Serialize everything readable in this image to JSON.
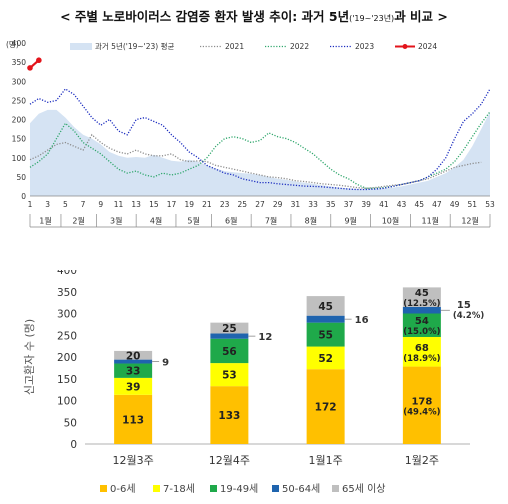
{
  "title": {
    "pre": "< 주별 노로바이러스 감염증 환자 발생 추이: 과거 5년",
    "small": "('19~'23년)",
    "post": "과 비교 >"
  },
  "chart_data": [
    {
      "type": "line",
      "yunit": "(명)",
      "ylim": [
        0,
        400
      ],
      "yticks": [
        0,
        50,
        100,
        150,
        200,
        250,
        300,
        350,
        400
      ],
      "xlim": [
        1,
        53
      ],
      "xticks": [
        1,
        3,
        5,
        7,
        9,
        11,
        13,
        15,
        17,
        19,
        21,
        23,
        25,
        27,
        29,
        31,
        33,
        35,
        37,
        39,
        41,
        43,
        45,
        47,
        49,
        51,
        53
      ],
      "months": [
        {
          "label": "1월",
          "from": 1,
          "to": 4.5
        },
        {
          "label": "2월",
          "from": 4.5,
          "to": 8.5
        },
        {
          "label": "3월",
          "from": 8.5,
          "to": 13
        },
        {
          "label": "4월",
          "from": 13,
          "to": 17.5
        },
        {
          "label": "5월",
          "from": 17.5,
          "to": 21.5
        },
        {
          "label": "6월",
          "from": 21.5,
          "to": 26
        },
        {
          "label": "7월",
          "from": 26,
          "to": 30.5
        },
        {
          "label": "8월",
          "from": 30.5,
          "to": 35
        },
        {
          "label": "9월",
          "from": 35,
          "to": 39.5
        },
        {
          "label": "10월",
          "from": 39.5,
          "to": 44
        },
        {
          "label": "11월",
          "from": 44,
          "to": 48.5
        },
        {
          "label": "12월",
          "from": 48.5,
          "to": 53
        }
      ],
      "series": [
        {
          "name": "과거 5년('19~'23) 평균",
          "style": "area",
          "color": "#d5e3f3",
          "points": [
            [
              1,
              190
            ],
            [
              2,
              215
            ],
            [
              3,
              225
            ],
            [
              4,
              225
            ],
            [
              5,
              205
            ],
            [
              6,
              180
            ],
            [
              7,
              160
            ],
            [
              8,
              150
            ],
            [
              9,
              135
            ],
            [
              10,
              115
            ],
            [
              11,
              105
            ],
            [
              12,
              100
            ],
            [
              13,
              102
            ],
            [
              14,
              100
            ],
            [
              15,
              108
            ],
            [
              16,
              100
            ],
            [
              17,
              92
            ],
            [
              18,
              90
            ],
            [
              19,
              95
            ],
            [
              20,
              90
            ],
            [
              21,
              80
            ],
            [
              22,
              72
            ],
            [
              23,
              65
            ],
            [
              24,
              62
            ],
            [
              25,
              60
            ],
            [
              26,
              58
            ],
            [
              27,
              55
            ],
            [
              28,
              50
            ],
            [
              29,
              45
            ],
            [
              30,
              42
            ],
            [
              31,
              38
            ],
            [
              32,
              35
            ],
            [
              33,
              32
            ],
            [
              34,
              28
            ],
            [
              35,
              25
            ],
            [
              36,
              22
            ],
            [
              37,
              20
            ],
            [
              38,
              18
            ],
            [
              39,
              18
            ],
            [
              40,
              18
            ],
            [
              41,
              20
            ],
            [
              42,
              22
            ],
            [
              43,
              25
            ],
            [
              44,
              30
            ],
            [
              45,
              35
            ],
            [
              46,
              40
            ],
            [
              47,
              50
            ],
            [
              48,
              60
            ],
            [
              49,
              75
            ],
            [
              50,
              95
            ],
            [
              51,
              130
            ],
            [
              52,
              175
            ],
            [
              53,
              220
            ]
          ]
        },
        {
          "name": "2021",
          "style": "dotted",
          "color": "#8c8c8c",
          "points": [
            [
              1,
              95
            ],
            [
              2,
              105
            ],
            [
              3,
              120
            ],
            [
              4,
              135
            ],
            [
              5,
              140
            ],
            [
              6,
              130
            ],
            [
              7,
              120
            ],
            [
              8,
              160
            ],
            [
              9,
              140
            ],
            [
              10,
              125
            ],
            [
              11,
              115
            ],
            [
              12,
              110
            ],
            [
              13,
              120
            ],
            [
              14,
              110
            ],
            [
              15,
              105
            ],
            [
              16,
              105
            ],
            [
              17,
              110
            ],
            [
              18,
              95
            ],
            [
              19,
              90
            ],
            [
              20,
              92
            ],
            [
              21,
              90
            ],
            [
              22,
              80
            ],
            [
              23,
              75
            ],
            [
              24,
              70
            ],
            [
              25,
              65
            ],
            [
              26,
              60
            ],
            [
              27,
              55
            ],
            [
              28,
              50
            ],
            [
              29,
              48
            ],
            [
              30,
              45
            ],
            [
              31,
              40
            ],
            [
              32,
              38
            ],
            [
              33,
              35
            ],
            [
              34,
              32
            ],
            [
              35,
              30
            ],
            [
              36,
              28
            ],
            [
              37,
              25
            ],
            [
              38,
              22
            ],
            [
              39,
              20
            ],
            [
              40,
              22
            ],
            [
              41,
              25
            ],
            [
              42,
              28
            ],
            [
              43,
              30
            ],
            [
              44,
              35
            ],
            [
              45,
              40
            ],
            [
              46,
              45
            ],
            [
              47,
              55
            ],
            [
              48,
              65
            ],
            [
              49,
              75
            ],
            [
              50,
              80
            ],
            [
              51,
              85
            ],
            [
              52,
              88
            ]
          ]
        },
        {
          "name": "2022",
          "style": "dotted",
          "color": "#2ea66b",
          "points": [
            [
              1,
              75
            ],
            [
              2,
              90
            ],
            [
              3,
              110
            ],
            [
              4,
              150
            ],
            [
              5,
              190
            ],
            [
              6,
              170
            ],
            [
              7,
              140
            ],
            [
              8,
              125
            ],
            [
              9,
              110
            ],
            [
              10,
              90
            ],
            [
              11,
              70
            ],
            [
              12,
              60
            ],
            [
              13,
              65
            ],
            [
              14,
              55
            ],
            [
              15,
              50
            ],
            [
              16,
              60
            ],
            [
              17,
              55
            ],
            [
              18,
              60
            ],
            [
              19,
              70
            ],
            [
              20,
              80
            ],
            [
              21,
              100
            ],
            [
              22,
              130
            ],
            [
              23,
              150
            ],
            [
              24,
              155
            ],
            [
              25,
              150
            ],
            [
              26,
              140
            ],
            [
              27,
              145
            ],
            [
              28,
              165
            ],
            [
              29,
              155
            ],
            [
              30,
              150
            ],
            [
              31,
              140
            ],
            [
              32,
              125
            ],
            [
              33,
              110
            ],
            [
              34,
              90
            ],
            [
              35,
              70
            ],
            [
              36,
              55
            ],
            [
              37,
              45
            ],
            [
              38,
              30
            ],
            [
              39,
              20
            ],
            [
              40,
              20
            ],
            [
              41,
              22
            ],
            [
              42,
              25
            ],
            [
              43,
              30
            ],
            [
              44,
              35
            ],
            [
              45,
              40
            ],
            [
              46,
              50
            ],
            [
              47,
              60
            ],
            [
              48,
              70
            ],
            [
              49,
              90
            ],
            [
              50,
              120
            ],
            [
              51,
              155
            ],
            [
              52,
              190
            ],
            [
              53,
              220
            ]
          ]
        },
        {
          "name": "2023",
          "style": "dotted",
          "color": "#1a2bbf",
          "points": [
            [
              1,
              240
            ],
            [
              2,
              255
            ],
            [
              3,
              245
            ],
            [
              4,
              250
            ],
            [
              5,
              280
            ],
            [
              6,
              265
            ],
            [
              7,
              235
            ],
            [
              8,
              205
            ],
            [
              9,
              185
            ],
            [
              10,
              200
            ],
            [
              11,
              170
            ],
            [
              12,
              160
            ],
            [
              13,
              200
            ],
            [
              14,
              205
            ],
            [
              15,
              195
            ],
            [
              16,
              185
            ],
            [
              17,
              160
            ],
            [
              18,
              140
            ],
            [
              19,
              115
            ],
            [
              20,
              100
            ],
            [
              21,
              80
            ],
            [
              22,
              70
            ],
            [
              23,
              60
            ],
            [
              24,
              55
            ],
            [
              25,
              45
            ],
            [
              26,
              40
            ],
            [
              27,
              35
            ],
            [
              28,
              35
            ],
            [
              29,
              32
            ],
            [
              30,
              30
            ],
            [
              31,
              28
            ],
            [
              32,
              26
            ],
            [
              33,
              25
            ],
            [
              34,
              24
            ],
            [
              35,
              22
            ],
            [
              36,
              20
            ],
            [
              37,
              18
            ],
            [
              38,
              17
            ],
            [
              39,
              17
            ],
            [
              40,
              18
            ],
            [
              41,
              20
            ],
            [
              42,
              25
            ],
            [
              43,
              30
            ],
            [
              44,
              35
            ],
            [
              45,
              40
            ],
            [
              46,
              50
            ],
            [
              47,
              70
            ],
            [
              48,
              100
            ],
            [
              49,
              150
            ],
            [
              50,
              195
            ],
            [
              51,
              215
            ],
            [
              52,
              240
            ],
            [
              53,
              280
            ]
          ]
        },
        {
          "name": "2024",
          "style": "solid-marker",
          "color": "#e3141b",
          "points": [
            [
              1,
              335
            ],
            [
              2,
              355
            ]
          ]
        }
      ]
    },
    {
      "type": "bar",
      "stacked": true,
      "ylabel": "신고환자 수 (명)",
      "ylim": [
        0,
        400
      ],
      "yticks": [
        0,
        50,
        100,
        150,
        200,
        250,
        300,
        350,
        400
      ],
      "categories": [
        "12월3주",
        "12월4주",
        "1월1주",
        "1월2주"
      ],
      "series": [
        {
          "name": "0-6세",
          "color": "#ffc000",
          "values": [
            113,
            133,
            172,
            178
          ]
        },
        {
          "name": "7-18세",
          "color": "#ffff00",
          "values": [
            39,
            53,
            52,
            68
          ]
        },
        {
          "name": "19-49세",
          "color": "#1fa94a",
          "values": [
            33,
            56,
            55,
            54
          ]
        },
        {
          "name": "50-64세",
          "color": "#1f64ae",
          "values": [
            9,
            12,
            16,
            15
          ]
        },
        {
          "name": "65세 이상",
          "color": "#bfbfbf",
          "values": [
            20,
            25,
            45,
            45
          ]
        }
      ],
      "percent_labels": [
        {
          "category": "1월2주",
          "series": "0-6세",
          "text": "(49.4%)"
        },
        {
          "category": "1월2주",
          "series": "7-18세",
          "text": "(18.9%)"
        },
        {
          "category": "1월2주",
          "series": "19-49세",
          "text": "(15.0%)"
        },
        {
          "category": "1월2주",
          "series": "50-64세",
          "text": "(4.2%)"
        },
        {
          "category": "1월2주",
          "series": "65세 이상",
          "text": "(12.5%)"
        }
      ],
      "legend_position": "bottom"
    }
  ]
}
